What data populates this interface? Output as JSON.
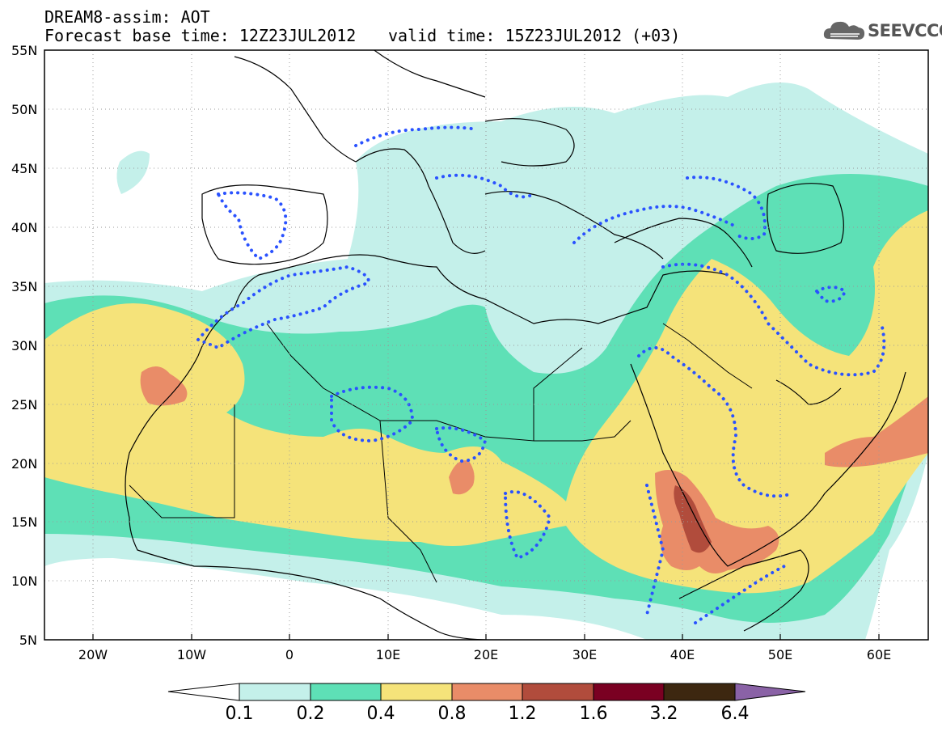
{
  "header": {
    "title": "DREAM8-assim: AOT",
    "base_time": "Forecast base time: 12Z23JUL2012",
    "valid_time": "valid time: 15Z23JUL2012 (+03)",
    "logo_text": "SEEVCCC"
  },
  "map": {
    "lat_labels": [
      "55N",
      "50N",
      "45N",
      "40N",
      "35N",
      "30N",
      "25N",
      "20N",
      "15N",
      "10N",
      "5N"
    ],
    "lon_labels": [
      "20W",
      "10W",
      "0",
      "10E",
      "20E",
      "30E",
      "40E",
      "50E",
      "60E"
    ],
    "lon_range": [
      -25,
      65
    ],
    "lat_range": [
      5,
      55
    ]
  },
  "colorbar": {
    "levels": [
      "0.1",
      "0.2",
      "0.4",
      "0.8",
      "1.2",
      "1.6",
      "3.2",
      "6.4"
    ],
    "colors": [
      "#c4f0ea",
      "#5ee0b6",
      "#f5e37a",
      "#e98c68",
      "#b14c3c",
      "#7a0022",
      "#3d2710",
      "#8a62a6"
    ]
  }
}
